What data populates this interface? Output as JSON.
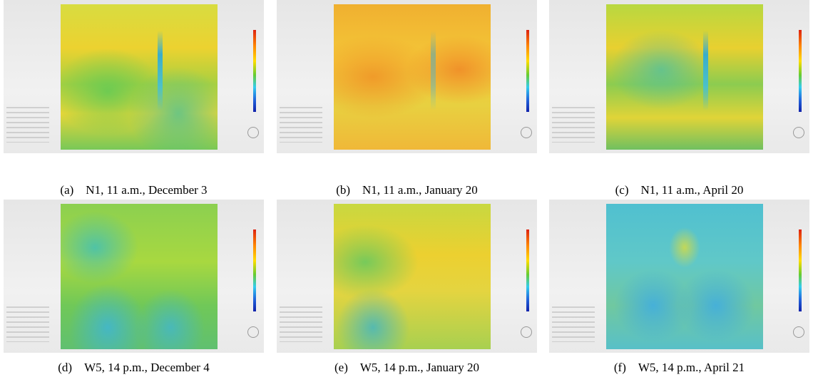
{
  "panels": [
    {
      "label": "(a)",
      "caption": "N1, 11 a.m., December 3"
    },
    {
      "label": "(b)",
      "caption": "N1, 11 a.m., January 20"
    },
    {
      "label": "(c)",
      "caption": "N1, 11 a.m., April 20"
    },
    {
      "label": "(d)",
      "caption": "W5, 14 p.m., December 4"
    },
    {
      "label": "(e)",
      "caption": "W5, 14 p.m., January 20"
    },
    {
      "label": "(f)",
      "caption": "W5, 14 p.m., April 21"
    }
  ]
}
